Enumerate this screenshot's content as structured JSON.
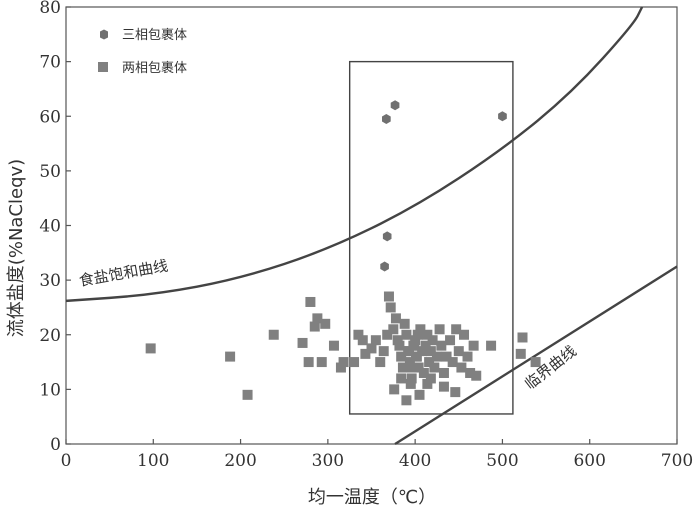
{
  "chart_data": {
    "type": "scatter",
    "xlabel": "均一温度（℃）",
    "ylabel": "流体盐度(%NaCleqv)",
    "xlim": [
      0,
      700
    ],
    "ylim": [
      0,
      80
    ],
    "xticks": [
      "0",
      "100",
      "200",
      "300",
      "400",
      "500",
      "600",
      "700"
    ],
    "yticks": [
      "0",
      "10",
      "20",
      "30",
      "40",
      "50",
      "60",
      "70",
      "80"
    ],
    "grid": false,
    "legend_position": "top-left",
    "legend": [
      {
        "label": "三相包裹体",
        "marker": "hexagon"
      },
      {
        "label": "两相包裹体",
        "marker": "square"
      }
    ],
    "series": [
      {
        "name": "三相包裹体",
        "marker": "hexagon",
        "color": "#707070",
        "points": [
          [
            365,
            32.5
          ],
          [
            368,
            38
          ],
          [
            367,
            59.5
          ],
          [
            377,
            62
          ],
          [
            500,
            60
          ]
        ]
      },
      {
        "name": "两相包裹体",
        "marker": "square",
        "color": "#808080",
        "points": [
          [
            97,
            17.5
          ],
          [
            188,
            16
          ],
          [
            208,
            9
          ],
          [
            238,
            20
          ],
          [
            271,
            18.5
          ],
          [
            280,
            26
          ],
          [
            278,
            15
          ],
          [
            285,
            21.5
          ],
          [
            288,
            23
          ],
          [
            293,
            15
          ],
          [
            297,
            22
          ],
          [
            307,
            18
          ],
          [
            315,
            14
          ],
          [
            318,
            15
          ],
          [
            330,
            15
          ],
          [
            335,
            20
          ],
          [
            340,
            19
          ],
          [
            343,
            16.5
          ],
          [
            350,
            17.5
          ],
          [
            355,
            19
          ],
          [
            360,
            15
          ],
          [
            364,
            17
          ],
          [
            368,
            20
          ],
          [
            370,
            27
          ],
          [
            372,
            25
          ],
          [
            375,
            21
          ],
          [
            378,
            23
          ],
          [
            380,
            19
          ],
          [
            382,
            18
          ],
          [
            384,
            16
          ],
          [
            386,
            14
          ],
          [
            388,
            22
          ],
          [
            390,
            20
          ],
          [
            392,
            17
          ],
          [
            394,
            15
          ],
          [
            396,
            12
          ],
          [
            398,
            18
          ],
          [
            400,
            19
          ],
          [
            402,
            16
          ],
          [
            404,
            14
          ],
          [
            406,
            21
          ],
          [
            408,
            17
          ],
          [
            410,
            13
          ],
          [
            412,
            18
          ],
          [
            414,
            20
          ],
          [
            416,
            15
          ],
          [
            418,
            17
          ],
          [
            420,
            19
          ],
          [
            422,
            14
          ],
          [
            425,
            16
          ],
          [
            428,
            21
          ],
          [
            430,
            18
          ],
          [
            433,
            13
          ],
          [
            436,
            16
          ],
          [
            440,
            19
          ],
          [
            443,
            15
          ],
          [
            447,
            21
          ],
          [
            450,
            17
          ],
          [
            453,
            14
          ],
          [
            456,
            20
          ],
          [
            460,
            16
          ],
          [
            463,
            13
          ],
          [
            467,
            18
          ],
          [
            376,
            10
          ],
          [
            384,
            12
          ],
          [
            390,
            8
          ],
          [
            395,
            11
          ],
          [
            405,
            9
          ],
          [
            414,
            11
          ],
          [
            418,
            12
          ],
          [
            433,
            10.5
          ],
          [
            446,
            9.5
          ],
          [
            470,
            12.5
          ],
          [
            487,
            18
          ],
          [
            521,
            16.5
          ],
          [
            523,
            19.5
          ],
          [
            538,
            15
          ],
          [
            399,
            18
          ],
          [
            401,
            16
          ],
          [
            403,
            20
          ],
          [
            397,
            14
          ],
          [
            393,
            17
          ]
        ]
      }
    ],
    "curves": [
      {
        "label": "食盐饱和曲线",
        "points": [
          [
            0,
            26.2
          ],
          [
            100,
            27.3
          ],
          [
            200,
            30.3
          ],
          [
            300,
            35.6
          ],
          [
            400,
            43.4
          ],
          [
            500,
            53.9
          ],
          [
            580,
            64.4
          ],
          [
            650,
            76.8
          ],
          [
            660,
            80
          ]
        ]
      },
      {
        "label": "临界曲线",
        "points": [
          [
            377,
            0
          ],
          [
            700,
            32.5
          ]
        ]
      }
    ],
    "box": {
      "x": [
        325,
        512
      ],
      "y": [
        5.5,
        70
      ]
    }
  }
}
